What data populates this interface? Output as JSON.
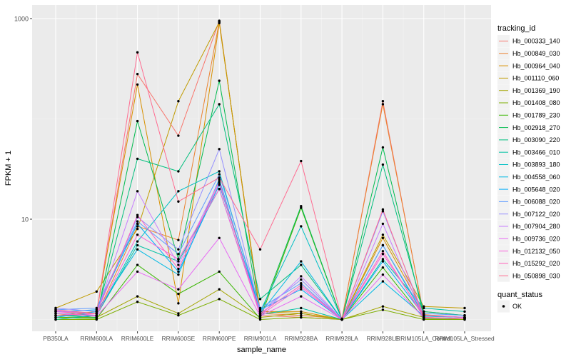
{
  "chart_data": {
    "type": "line",
    "title": "",
    "xlabel": "sample_name",
    "ylabel": "FPKM + 1",
    "yscale": "log10",
    "ylim": [
      1,
      1100
    ],
    "yticks": [
      {
        "value": 10,
        "label": "10"
      },
      {
        "value": 1000,
        "label": "1000"
      }
    ],
    "categories": [
      "PB350LA",
      "RRIM600LA",
      "RRIM600LE",
      "RRIM600SE",
      "RRIM600PE",
      "RRIM901LA",
      "RRIM928BA",
      "RRIM928LA",
      "RRIM928LE",
      "RRIM105LA_Control",
      "RRIM105LA_Stressed"
    ],
    "grid": true,
    "legend": {
      "position": "right",
      "title": "tracking_id",
      "status_title": "quant_status",
      "status_items": [
        {
          "label": "OK",
          "symbol": "point"
        }
      ]
    },
    "series": [
      {
        "name": "Hb_000333_140",
        "color": "#F8766D",
        "values": [
          1.2,
          1.15,
          280,
          68,
          950,
          1.1,
          1.05,
          1.0,
          150,
          1.1,
          1.05
        ]
      },
      {
        "name": "Hb_000849_030",
        "color": "#EA8331",
        "values": [
          1.15,
          1.1,
          8.5,
          6.2,
          930,
          1.15,
          1.1,
          1.02,
          140,
          1.12,
          1.05
        ]
      },
      {
        "name": "Hb_000964_040",
        "color": "#D89000",
        "values": [
          1.1,
          1.2,
          220,
          1.45,
          900,
          1.2,
          1.2,
          1.0,
          6.5,
          1.2,
          1.1
        ]
      },
      {
        "name": "Hb_001110_060",
        "color": "#C09B00",
        "values": [
          1.3,
          1.9,
          8.0,
          150,
          920,
          1.2,
          1.15,
          1.0,
          7.0,
          1.35,
          1.3
        ]
      },
      {
        "name": "Hb_001369_190",
        "color": "#A3A500",
        "values": [
          1.05,
          1.05,
          1.7,
          1.15,
          2.0,
          1.05,
          1.15,
          1.0,
          1.35,
          1.05,
          1.0
        ]
      },
      {
        "name": "Hb_001408_080",
        "color": "#7CAE00",
        "values": [
          1.0,
          1.0,
          1.5,
          1.1,
          1.6,
          1.0,
          1.05,
          1.0,
          1.25,
          1.0,
          1.0
        ]
      },
      {
        "name": "Hb_001789_230",
        "color": "#39B600",
        "values": [
          1.05,
          1.02,
          3.5,
          1.8,
          3.0,
          1.02,
          13,
          1.0,
          3.3,
          1.02,
          1.02
        ]
      },
      {
        "name": "Hb_002918_270",
        "color": "#00BB4E",
        "values": [
          1.1,
          1.05,
          95,
          4.0,
          240,
          1.1,
          13.5,
          1.0,
          52,
          1.08,
          1.05
        ]
      },
      {
        "name": "Hb_003090_220",
        "color": "#00BF7D",
        "values": [
          1.1,
          1.1,
          40,
          30,
          140,
          1.6,
          3.5,
          1.0,
          35,
          1.2,
          1.1
        ]
      },
      {
        "name": "Hb_003466_010",
        "color": "#00C1A3",
        "values": [
          1.0,
          1.1,
          5.5,
          3.8,
          20,
          1.12,
          1.3,
          1.0,
          4.0,
          1.3,
          1.2
        ]
      },
      {
        "name": "Hb_003893_180",
        "color": "#00BFC4",
        "values": [
          1.15,
          1.1,
          6.0,
          19,
          30,
          1.2,
          8.5,
          1.0,
          5.5,
          1.1,
          1.05
        ]
      },
      {
        "name": "Hb_004558_060",
        "color": "#00B9E3",
        "values": [
          1.05,
          1.2,
          5.0,
          2.8,
          25,
          1.15,
          3.8,
          1.0,
          2.4,
          1.08,
          1.05
        ]
      },
      {
        "name": "Hb_005648_020",
        "color": "#00ADFA",
        "values": [
          1.2,
          1.25,
          9.0,
          3.0,
          22,
          1.25,
          2.0,
          1.0,
          3.8,
          1.1,
          1.05
        ]
      },
      {
        "name": "Hb_006088_020",
        "color": "#619CFF",
        "values": [
          1.25,
          1.3,
          9.5,
          4.5,
          28,
          1.3,
          2.3,
          1.0,
          5.5,
          1.15,
          1.1
        ]
      },
      {
        "name": "Hb_007122_020",
        "color": "#9590FF",
        "values": [
          1.3,
          1.2,
          10.5,
          5.0,
          50,
          1.2,
          2.5,
          1.0,
          12,
          1.1,
          1.05
        ]
      },
      {
        "name": "Hb_007904_280",
        "color": "#C77CFF",
        "values": [
          1.22,
          1.15,
          19,
          3.5,
          24,
          1.1,
          2.7,
          1.0,
          9,
          1.05,
          1.02
        ]
      },
      {
        "name": "Hb_009736_020",
        "color": "#E76BF3",
        "values": [
          1.15,
          1.08,
          3.0,
          2.0,
          6.5,
          1.08,
          1.7,
          1.0,
          2.8,
          1.04,
          1.02
        ]
      },
      {
        "name": "Hb_012132_050",
        "color": "#FA62DB",
        "values": [
          1.2,
          1.1,
          7.0,
          4.0,
          20,
          1.1,
          2.1,
          1.0,
          4.5,
          1.1,
          1.05
        ]
      },
      {
        "name": "Hb_015292_020",
        "color": "#FF62BC",
        "values": [
          1.1,
          1.15,
          11,
          3.2,
          23,
          1.15,
          2.2,
          1.0,
          4.8,
          1.05,
          1.02
        ]
      },
      {
        "name": "Hb_050898_030",
        "color": "#FF6C91",
        "values": [
          1.25,
          1.15,
          460,
          15,
          26,
          5.0,
          38,
          1.0,
          12.5,
          1.05,
          1.02
        ]
      }
    ]
  }
}
